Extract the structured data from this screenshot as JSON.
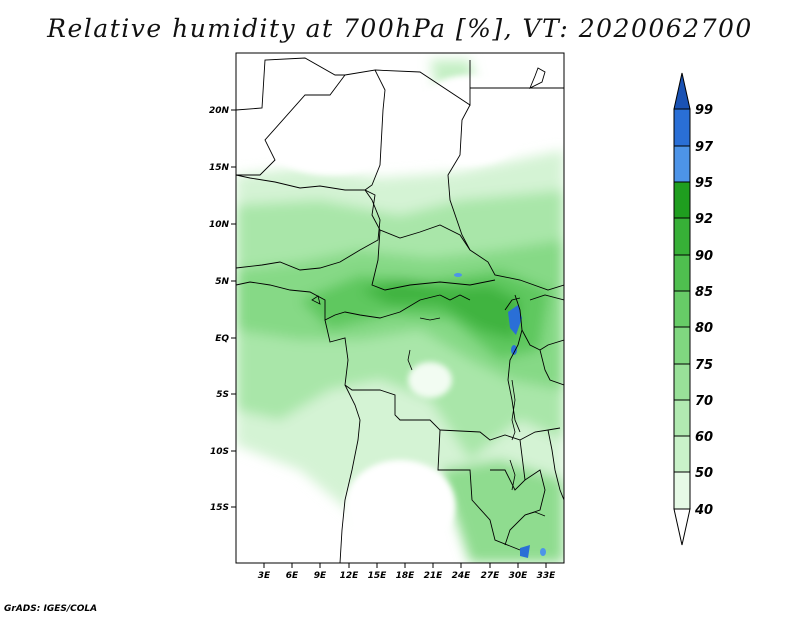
{
  "title": "Relative humidity at 700hPa [%], VT: 2020062700",
  "credit": "GrADS: IGES/COLA",
  "map": {
    "variable": "Relative humidity",
    "level": "700hPa",
    "units": "%",
    "valid_time": "2020062700",
    "lat_ticks": [
      "20N",
      "15N",
      "10N",
      "5N",
      "EQ",
      "5S",
      "10S",
      "15S"
    ],
    "lon_ticks": [
      "3E",
      "6E",
      "9E",
      "12E",
      "15E",
      "18E",
      "21E",
      "24E",
      "27E",
      "30E",
      "33E"
    ]
  },
  "colorbar": {
    "levels": [
      "40",
      "50",
      "60",
      "70",
      "75",
      "80",
      "85",
      "90",
      "92",
      "95",
      "97",
      "99"
    ],
    "colors": [
      "#e6fae6",
      "#c9f2c9",
      "#b1eab1",
      "#99e199",
      "#80d780",
      "#67cc67",
      "#4fbf4f",
      "#37b037",
      "#1f9e1f",
      "#0d870d",
      "#4d94e8",
      "#2a6fd6",
      "#1a52b4"
    ],
    "colorbar_color_order": "lowest to highest"
  },
  "colors": {
    "moist_core": "#37b037",
    "blue_spots": "#2a6fd6",
    "border": "#000000"
  }
}
